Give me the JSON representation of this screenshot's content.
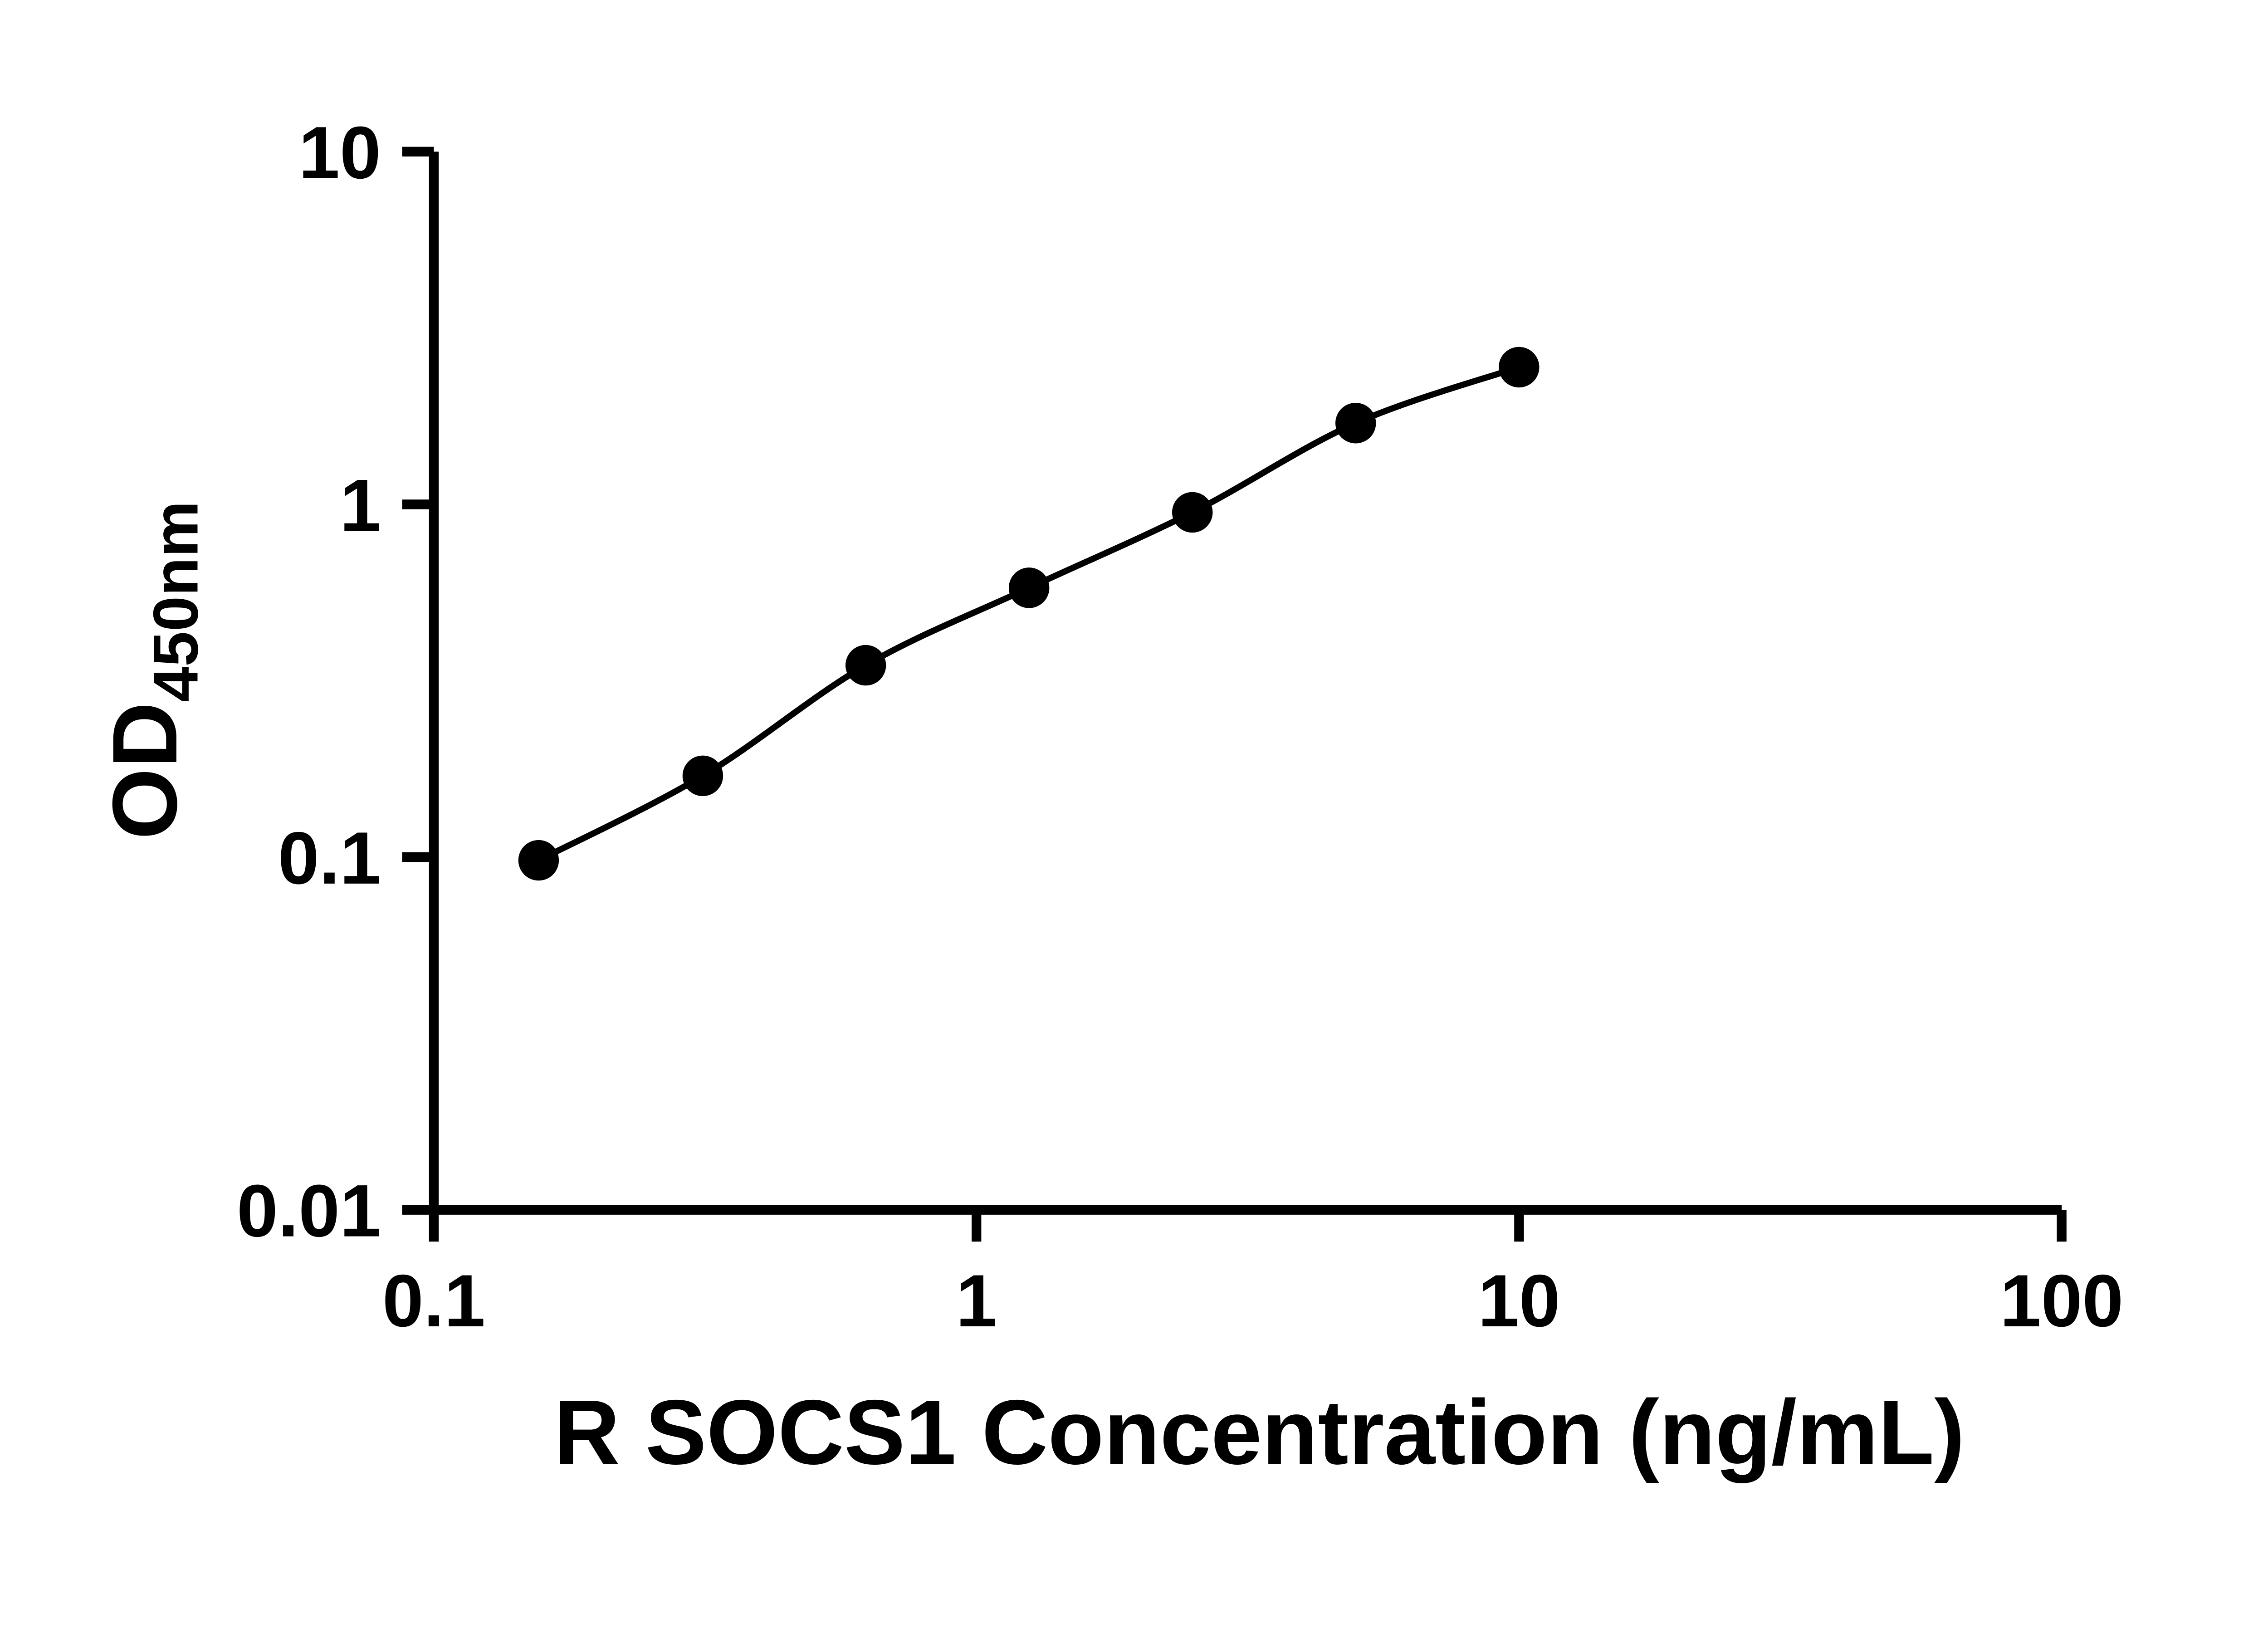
{
  "figure": {
    "background": "#ffffff",
    "ink": "#000000"
  },
  "chart_data": {
    "type": "scatter",
    "subtype": "elisa-standard-curve",
    "xlabel": "R SOCS1 Concentration (ng/mL)",
    "ylabel": "OD",
    "ylabel_subscript": "450nm",
    "x_scale": "log10",
    "y_scale": "log10",
    "xlim": [
      0.1,
      100
    ],
    "ylim": [
      0.01,
      10
    ],
    "x_ticks": [
      0.1,
      1,
      10,
      100
    ],
    "x_tick_labels": [
      "0.1",
      "1",
      "10",
      "100"
    ],
    "y_ticks": [
      0.01,
      0.1,
      1,
      10
    ],
    "y_tick_labels": [
      "0.01",
      "0.1",
      "1",
      "10"
    ],
    "grid": false,
    "legend": "none",
    "marker": "filled-circle",
    "line_style": "smooth",
    "series": [
      {
        "color": "#000000",
        "points": [
          {
            "x": 0.156,
            "y": 0.098
          },
          {
            "x": 0.313,
            "y": 0.17
          },
          {
            "x": 0.625,
            "y": 0.35
          },
          {
            "x": 1.25,
            "y": 0.58
          },
          {
            "x": 2.5,
            "y": 0.95
          },
          {
            "x": 5,
            "y": 1.7
          },
          {
            "x": 10,
            "y": 2.45
          }
        ]
      }
    ]
  }
}
